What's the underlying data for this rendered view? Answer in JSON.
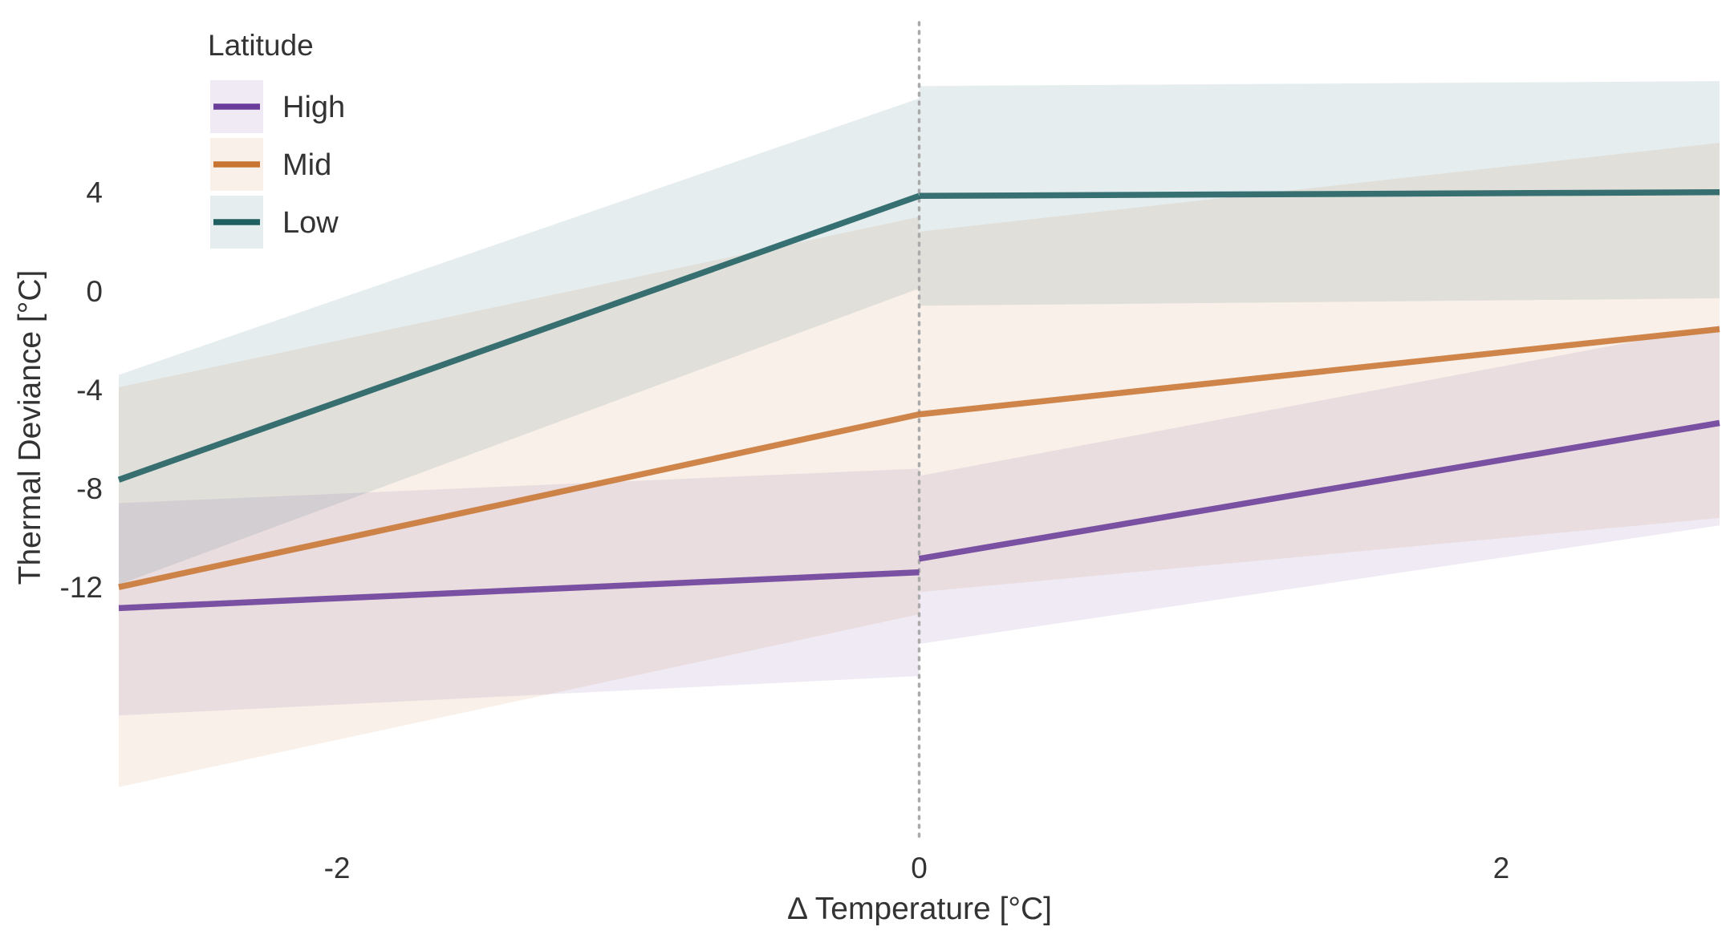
{
  "chart_data": {
    "type": "line",
    "title": "",
    "xlabel": "Δ  Temperature [°C]",
    "ylabel": "Thermal Deviance [°C]",
    "xlim": [
      -2.75,
      2.75
    ],
    "ylim": [
      -22,
      10
    ],
    "x_ticks": [
      {
        "value": -2,
        "label": "-2"
      },
      {
        "value": 0,
        "label": "0"
      },
      {
        "value": 2,
        "label": "2"
      }
    ],
    "y_ticks": [
      {
        "value": 4,
        "label": "4"
      },
      {
        "value": 0,
        "label": "0"
      },
      {
        "value": -4,
        "label": "-4"
      },
      {
        "value": -8,
        "label": "-8"
      },
      {
        "value": -12,
        "label": "-12"
      }
    ],
    "grid": false,
    "reference_line": {
      "x": 0,
      "style": "dotted",
      "color": "#aaaaaa"
    },
    "legend": {
      "title": "Latitude",
      "position": "top-left"
    },
    "series": [
      {
        "name": "High",
        "color": "#6a3d9a",
        "segments": [
          {
            "x": [
              -2.75,
              0
            ],
            "y": [
              -12.85,
              -11.4
            ],
            "lower": [
              -17.2,
              -15.6
            ],
            "upper": [
              -8.6,
              -7.2
            ]
          },
          {
            "x": [
              0,
              2.75
            ],
            "y": [
              -10.85,
              -5.35
            ],
            "lower": [
              -14.3,
              -9.5
            ],
            "upper": [
              -7.5,
              -1.4
            ]
          }
        ]
      },
      {
        "name": "Mid",
        "color": "#c87533",
        "segments": [
          {
            "x": [
              -2.75,
              0
            ],
            "y": [
              -12.0,
              -5.0
            ],
            "lower": [
              -20.1,
              -13.1
            ],
            "upper": [
              -3.9,
              3.0
            ]
          },
          {
            "x": [
              0,
              2.75
            ],
            "y": [
              -5.0,
              -1.55
            ],
            "lower": [
              -12.2,
              -9.2
            ],
            "upper": [
              2.4,
              6.0
            ]
          }
        ]
      },
      {
        "name": "Low",
        "color": "#1f5f61",
        "segments": [
          {
            "x": [
              -2.75,
              0
            ],
            "y": [
              -7.65,
              3.85
            ],
            "lower": [
              -11.9,
              0.1
            ],
            "upper": [
              -3.4,
              7.8
            ]
          },
          {
            "x": [
              0,
              2.75
            ],
            "y": [
              3.85,
              4.0
            ],
            "lower": [
              -0.6,
              -0.3
            ],
            "upper": [
              8.3,
              8.5
            ]
          }
        ]
      }
    ]
  }
}
